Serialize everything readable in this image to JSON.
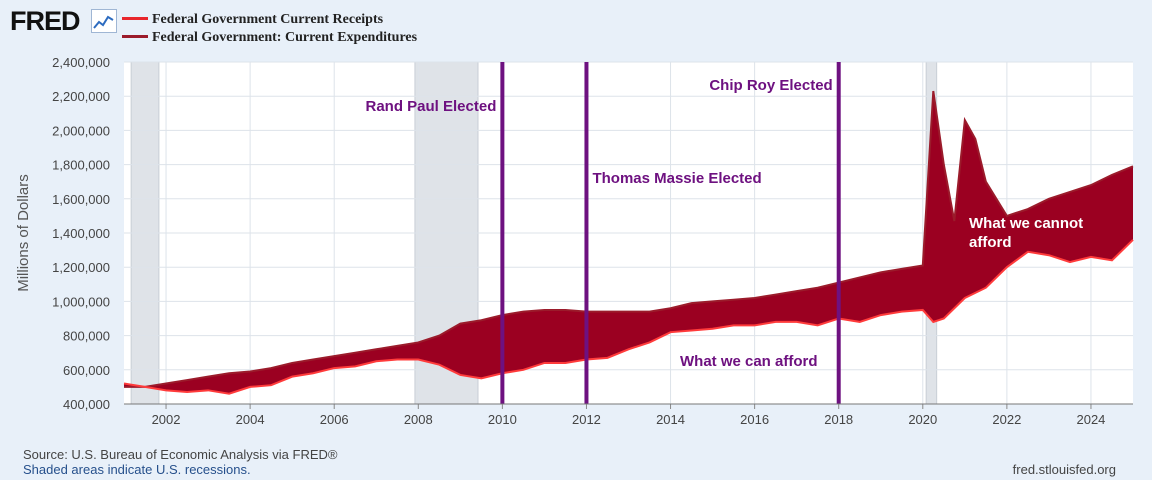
{
  "header": {
    "logo_text": "FRED",
    "legend": [
      {
        "label": "Federal Government Current Receipts",
        "color": "#e8262c"
      },
      {
        "label": "Federal Government: Current Expenditures",
        "color": "#9b1b2b"
      }
    ]
  },
  "colors": {
    "fill": "#9b0021",
    "receipts_line": "#ff3b3b",
    "expenditures_line": "#9b1b2b",
    "recession": "#dfe3e8",
    "event_line": "#6e1180",
    "annotation_text": "#6e1180",
    "grid": "#dde3ea"
  },
  "chart_data": {
    "type": "area",
    "ylabel": "Millions of Dollars",
    "ylim": [
      400000,
      2400000
    ],
    "xlim": [
      2001.0,
      2025.0
    ],
    "yticks": [
      400000,
      600000,
      800000,
      1000000,
      1200000,
      1400000,
      1600000,
      1800000,
      2000000,
      2200000,
      2400000
    ],
    "ytick_labels": [
      "400,000",
      "600,000",
      "800,000",
      "1,000,000",
      "1,200,000",
      "1,400,000",
      "1,600,000",
      "1,800,000",
      "2,000,000",
      "2,200,000",
      "2,400,000"
    ],
    "xticks": [
      2002,
      2004,
      2006,
      2008,
      2010,
      2012,
      2014,
      2016,
      2018,
      2020,
      2022,
      2024
    ],
    "xtick_labels": [
      "2002",
      "2004",
      "2006",
      "2008",
      "2010",
      "2012",
      "2014",
      "2016",
      "2018",
      "2020",
      "2022",
      "2024"
    ],
    "recessions": [
      [
        2001.17,
        2001.83
      ],
      [
        2007.92,
        2009.42
      ],
      [
        2020.08,
        2020.33
      ]
    ],
    "series": [
      {
        "name": "Federal Government Current Receipts",
        "x": [
          2001.0,
          2001.5,
          2002.0,
          2002.5,
          2003.0,
          2003.5,
          2004.0,
          2004.5,
          2005.0,
          2005.5,
          2006.0,
          2006.5,
          2007.0,
          2007.5,
          2008.0,
          2008.5,
          2009.0,
          2009.5,
          2010.0,
          2010.5,
          2011.0,
          2011.5,
          2012.0,
          2012.5,
          2013.0,
          2013.5,
          2014.0,
          2014.5,
          2015.0,
          2015.5,
          2016.0,
          2016.5,
          2017.0,
          2017.5,
          2018.0,
          2018.5,
          2019.0,
          2019.5,
          2020.0,
          2020.25,
          2020.5,
          2021.0,
          2021.5,
          2022.0,
          2022.5,
          2023.0,
          2023.5,
          2024.0,
          2024.5,
          2025.0
        ],
        "values": [
          520000,
          500000,
          480000,
          470000,
          480000,
          460000,
          500000,
          510000,
          560000,
          580000,
          610000,
          620000,
          650000,
          660000,
          660000,
          630000,
          570000,
          550000,
          580000,
          600000,
          640000,
          640000,
          660000,
          670000,
          720000,
          760000,
          820000,
          830000,
          840000,
          860000,
          860000,
          880000,
          880000,
          860000,
          900000,
          880000,
          920000,
          940000,
          950000,
          880000,
          900000,
          1020000,
          1080000,
          1200000,
          1290000,
          1270000,
          1230000,
          1260000,
          1240000,
          1360000
        ]
      },
      {
        "name": "Federal Government: Current Expenditures",
        "x": [
          2001.0,
          2001.5,
          2002.0,
          2002.5,
          2003.0,
          2003.5,
          2004.0,
          2004.5,
          2005.0,
          2005.5,
          2006.0,
          2006.5,
          2007.0,
          2007.5,
          2008.0,
          2008.5,
          2009.0,
          2009.5,
          2010.0,
          2010.5,
          2011.0,
          2011.5,
          2012.0,
          2012.5,
          2013.0,
          2013.5,
          2014.0,
          2014.5,
          2015.0,
          2015.5,
          2016.0,
          2016.5,
          2017.0,
          2017.5,
          2018.0,
          2018.5,
          2019.0,
          2019.5,
          2020.0,
          2020.25,
          2020.5,
          2020.75,
          2021.0,
          2021.25,
          2021.5,
          2022.0,
          2022.5,
          2023.0,
          2023.5,
          2024.0,
          2024.5,
          2025.0
        ],
        "values": [
          500000,
          500000,
          520000,
          540000,
          560000,
          580000,
          590000,
          610000,
          640000,
          660000,
          680000,
          700000,
          720000,
          740000,
          760000,
          800000,
          870000,
          890000,
          920000,
          940000,
          950000,
          950000,
          940000,
          940000,
          940000,
          940000,
          960000,
          990000,
          1000000,
          1010000,
          1020000,
          1040000,
          1060000,
          1080000,
          1110000,
          1140000,
          1170000,
          1190000,
          1210000,
          2230000,
          1800000,
          1470000,
          2060000,
          1950000,
          1700000,
          1500000,
          1540000,
          1600000,
          1640000,
          1680000,
          1740000,
          1790000
        ]
      }
    ],
    "events": [
      {
        "x": 2010.0,
        "label": "Rand Paul Elected"
      },
      {
        "x": 2012.0,
        "label": "Thomas Massie Elected"
      },
      {
        "x": 2018.0,
        "label": "Chip Roy Elected"
      }
    ],
    "annotations": [
      {
        "text": "What we can afford"
      },
      {
        "text": "What  we cannot"
      },
      {
        "text": "afford"
      }
    ]
  },
  "footer": {
    "source": "Source: U.S. Bureau of Economic Analysis via FRED®",
    "recession_note": "Shaded areas indicate U.S. recessions.",
    "site": "fred.stlouisfed.org"
  }
}
